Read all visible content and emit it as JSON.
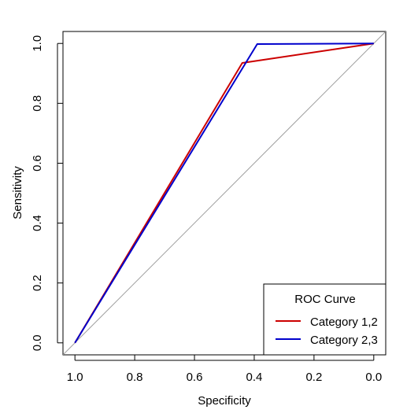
{
  "chart_data": {
    "type": "line",
    "xlabel": "Specificity",
    "ylabel": "Sensitivity",
    "xlim": [
      1.04,
      -0.04
    ],
    "ylim": [
      -0.04,
      1.04
    ],
    "x_reversed": true,
    "x_ticks": [
      1.0,
      0.8,
      0.6,
      0.4,
      0.2,
      0.0
    ],
    "x_tick_labels": [
      "1.0",
      "0.8",
      "0.6",
      "0.4",
      "0.2",
      "0.0"
    ],
    "y_ticks": [
      0.0,
      0.2,
      0.4,
      0.6,
      0.8,
      1.0
    ],
    "y_tick_labels": [
      "0.0",
      "0.2",
      "0.4",
      "0.6",
      "0.8",
      "1.0"
    ],
    "grid": false,
    "reference_line": {
      "from": [
        1.0,
        0.0
      ],
      "to": [
        0.0,
        1.0
      ],
      "color": "#a0a0a0"
    },
    "legend": {
      "title": "ROC Curve",
      "position": "bottom-right"
    },
    "series": [
      {
        "name": "Category 1,2",
        "color": "#cc0000",
        "points": [
          [
            1.0,
            0.0
          ],
          [
            0.44,
            0.935
          ],
          [
            0.0,
            1.0
          ]
        ]
      },
      {
        "name": "Category 2,3",
        "color": "#0000cc",
        "points": [
          [
            1.0,
            0.0
          ],
          [
            0.39,
            0.998
          ],
          [
            0.0,
            1.0
          ]
        ]
      }
    ]
  }
}
